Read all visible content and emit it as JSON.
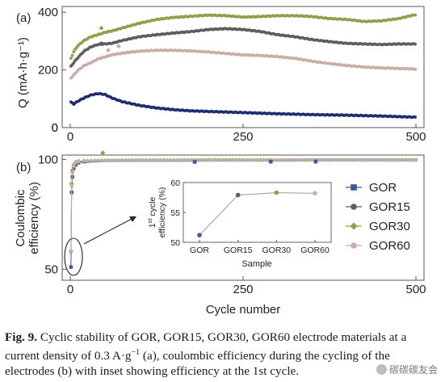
{
  "chart_data": [
    {
      "panel_label": "(a)",
      "type": "scatter",
      "ylabel": "Q (mA·h·g⁻¹)",
      "xlabel": "",
      "xlim": [
        0,
        500
      ],
      "ylim": [
        0,
        420
      ],
      "xticks": [
        0,
        250,
        500
      ],
      "yticks": [
        0,
        200,
        400
      ],
      "grid": false,
      "series": [
        {
          "color": "#1f2e6e",
          "x": [
            1,
            5,
            10,
            20,
            30,
            40,
            50,
            60,
            75,
            100,
            125,
            150,
            175,
            200,
            250,
            300,
            350,
            400,
            450,
            500
          ],
          "y": [
            88,
            82,
            90,
            103,
            113,
            118,
            115,
            103,
            90,
            77,
            68,
            62,
            58,
            56,
            52,
            48,
            45,
            43,
            40,
            36
          ]
        },
        {
          "color": "#5d5d5d",
          "x": [
            1,
            5,
            10,
            20,
            30,
            40,
            50,
            60,
            75,
            100,
            125,
            150,
            175,
            200,
            225,
            250,
            275,
            300,
            325,
            350,
            375,
            400,
            425,
            450,
            475,
            500
          ],
          "y": [
            212,
            225,
            240,
            265,
            280,
            288,
            290,
            292,
            302,
            315,
            322,
            328,
            333,
            340,
            343,
            340,
            333,
            322,
            315,
            305,
            298,
            292,
            290,
            288,
            290,
            290
          ]
        },
        {
          "color": "#8fa04a",
          "x": [
            1,
            5,
            10,
            20,
            30,
            40,
            50,
            60,
            75,
            100,
            125,
            150,
            175,
            200,
            225,
            250,
            275,
            300,
            325,
            350,
            375,
            400,
            425,
            450,
            475,
            500
          ],
          "y": [
            240,
            262,
            282,
            302,
            315,
            322,
            330,
            335,
            345,
            362,
            375,
            382,
            386,
            390,
            388,
            383,
            385,
            388,
            388,
            385,
            378,
            375,
            368,
            370,
            378,
            392
          ]
        },
        {
          "color": "#c8aea7",
          "x": [
            1,
            5,
            10,
            20,
            30,
            40,
            50,
            60,
            75,
            100,
            125,
            150,
            175,
            200,
            225,
            250,
            275,
            300,
            325,
            350,
            375,
            400,
            425,
            450,
            475,
            500
          ],
          "y": [
            172,
            182,
            196,
            215,
            225,
            238,
            245,
            252,
            258,
            265,
            268,
            268,
            266,
            262,
            257,
            252,
            250,
            246,
            240,
            230,
            222,
            215,
            210,
            207,
            205,
            203
          ]
        }
      ],
      "outliers": [
        {
          "series": 2,
          "x": 45,
          "y": 345
        },
        {
          "series": 3,
          "x": 55,
          "y": 268
        },
        {
          "series": 3,
          "x": 70,
          "y": 282
        },
        {
          "series": 1,
          "x": 45,
          "y": 292
        }
      ]
    },
    {
      "panel_label": "(b)",
      "type": "scatter",
      "ylabel": "Coulombic efficiency (%)",
      "xlabel": "Cycle number",
      "xlim": [
        0,
        500
      ],
      "ylim": [
        45,
        102
      ],
      "xticks": [
        0,
        250,
        500
      ],
      "yticks": [
        50,
        100
      ],
      "grid": false,
      "legend_position": "right",
      "series": [
        {
          "name": "GOR",
          "color": "#3a5a9a",
          "marker": "square",
          "x": [
            1,
            2,
            3,
            5,
            8,
            12,
            20,
            30,
            50,
            100,
            150,
            200,
            250,
            300,
            350,
            400,
            450,
            500
          ],
          "y": [
            51,
            85,
            92,
            96,
            97.5,
            98.5,
            99,
            99.2,
            99.5,
            99.6,
            99.6,
            99.7,
            99.7,
            99.7,
            99.8,
            99.8,
            99.8,
            99.8
          ]
        },
        {
          "name": "GOR15",
          "color": "#5d5d5d",
          "marker": "circle",
          "x": [
            1,
            2,
            3,
            5,
            8,
            12,
            20,
            30,
            50,
            100,
            150,
            200,
            250,
            300,
            350,
            400,
            450,
            500
          ],
          "y": [
            58,
            88,
            94,
            97,
            98.5,
            99,
            99.3,
            99.4,
            99.6,
            99.7,
            99.7,
            99.7,
            99.7,
            99.8,
            99.8,
            99.8,
            99.8,
            99.8
          ]
        },
        {
          "name": "GOR30",
          "color": "#8fa04a",
          "marker": "diamond",
          "x": [
            1,
            2,
            3,
            5,
            8,
            12,
            20,
            30,
            50,
            100,
            150,
            200,
            250,
            300,
            350,
            400,
            450,
            500
          ],
          "y": [
            58.3,
            89,
            95,
            97.5,
            98.8,
            99.2,
            99.4,
            99.5,
            99.6,
            99.7,
            99.7,
            99.8,
            99.8,
            99.8,
            99.8,
            99.8,
            99.8,
            99.8
          ]
        },
        {
          "name": "GOR60",
          "color": "#c8aea7",
          "marker": "circle",
          "x": [
            1,
            2,
            3,
            5,
            8,
            12,
            20,
            30,
            50,
            100,
            150,
            200,
            250,
            300,
            350,
            400,
            450,
            500
          ],
          "y": [
            58.2,
            88,
            94,
            97,
            98.5,
            99,
            99.3,
            99.5,
            99.6,
            99.7,
            99.7,
            99.7,
            99.7,
            99.8,
            99.8,
            99.8,
            99.8,
            99.8
          ]
        }
      ],
      "outliers": [
        {
          "series": 2,
          "x": 47,
          "y": 103
        },
        {
          "series": 0,
          "x": 290,
          "y": 99.0
        },
        {
          "series": 0,
          "x": 355,
          "y": 99.0
        },
        {
          "series": 0,
          "x": 180,
          "y": 98.9
        }
      ]
    },
    {
      "panel_label": "",
      "type": "line",
      "inset": true,
      "ylabel": "1st cycle efficiency (%)",
      "ylabel_prefix": "1",
      "ylabel_superscript": "st",
      "ylabel_line1_rest": " cycle",
      "ylabel_line2": "efficiency (%)",
      "xlabel": "Sample",
      "categories": [
        "GOR",
        "GOR15",
        "GOR30",
        "GOR60"
      ],
      "values": [
        51.2,
        57.9,
        58.3,
        58.2
      ],
      "colors": [
        "#3a5a9a",
        "#5d5d5d",
        "#8fa04a",
        "#c8aea7"
      ],
      "ylim": [
        50,
        60
      ],
      "yticks": [
        50,
        55,
        60
      ]
    }
  ],
  "caption": {
    "label": "Fig. 9.",
    "text": "Cyclic stability of GOR, GOR15, GOR30, GOR60 electrode materials at a current density of 0.3 A·g",
    "superscript": "−1",
    "text_after": " (a), coulombic efficiency during the cycling of the electrodes (b) with inset showing efficiency at the 1st cycle."
  },
  "watermark": "碳碳碳友会"
}
